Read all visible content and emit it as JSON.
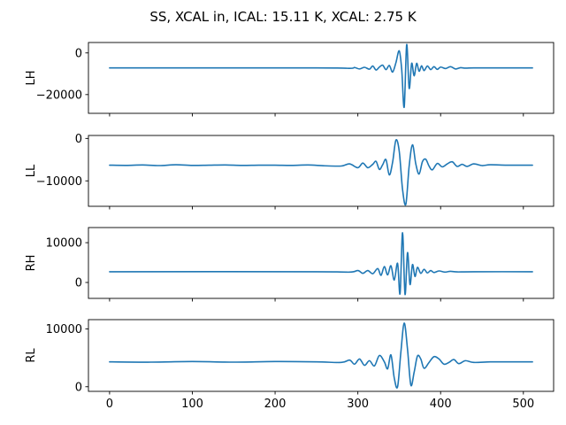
{
  "figure": {
    "title": "SS, XCAL in, ICAL: 15.11 K, XCAL: 2.75 K"
  },
  "chart_data": [
    {
      "type": "line",
      "ylabel": "LH",
      "xlim": [
        -25.55,
        536.55
      ],
      "ylim": [
        -29000,
        5000
      ],
      "xticks": [
        0,
        100,
        200,
        300,
        400,
        500
      ],
      "xtick_labels_shown": false,
      "yticks": [
        0,
        -20000
      ],
      "ytick_labels": [
        "0",
        "−20000"
      ],
      "color": "#1f77b4",
      "baseline": -7200,
      "x": [
        0,
        250,
        290,
        296,
        302,
        308,
        314,
        318,
        322,
        326,
        330,
        334,
        338,
        342,
        346,
        350,
        353,
        356,
        359,
        362,
        365,
        368,
        371,
        374,
        377,
        380,
        384,
        388,
        392,
        396,
        400,
        406,
        412,
        418,
        424,
        430,
        440,
        460,
        511
      ],
      "y": [
        -7200,
        -7200,
        -7400,
        -7000,
        -7700,
        -6900,
        -7800,
        -6300,
        -8200,
        -6800,
        -5900,
        -8000,
        -6000,
        -9200,
        -4700,
        1000,
        -8000,
        -26000,
        4000,
        -17000,
        -5000,
        -11000,
        -5000,
        -8800,
        -6200,
        -8500,
        -6300,
        -8000,
        -6600,
        -7900,
        -6800,
        -7500,
        -6600,
        -7700,
        -7100,
        -7300,
        -7200,
        -7200,
        -7200
      ]
    },
    {
      "type": "line",
      "ylabel": "LL",
      "xlim": [
        -25.55,
        536.55
      ],
      "ylim": [
        -16000,
        700
      ],
      "xticks": [
        0,
        100,
        200,
        300,
        400,
        500
      ],
      "xtick_labels_shown": false,
      "yticks": [
        0,
        -10000
      ],
      "ytick_labels": [
        "0",
        "−10000"
      ],
      "color": "#1f77b4",
      "baseline": -6300,
      "x": [
        0,
        20,
        40,
        60,
        80,
        100,
        120,
        140,
        160,
        180,
        200,
        220,
        240,
        260,
        280,
        290,
        300,
        306,
        312,
        318,
        322,
        326,
        330,
        334,
        338,
        342,
        346,
        350,
        354,
        358,
        362,
        366,
        370,
        374,
        378,
        382,
        386,
        390,
        396,
        402,
        408,
        414,
        420,
        426,
        432,
        440,
        450,
        460,
        480,
        500,
        511
      ],
      "y": [
        -6300,
        -6350,
        -6250,
        -6400,
        -6200,
        -6350,
        -6300,
        -6250,
        -6350,
        -6300,
        -6300,
        -6350,
        -6250,
        -6450,
        -6500,
        -6000,
        -6900,
        -5800,
        -6900,
        -6100,
        -5400,
        -7300,
        -6200,
        -5000,
        -8600,
        -5600,
        -400,
        -3000,
        -12000,
        -15500,
        -6500,
        -1500,
        -6000,
        -8400,
        -5500,
        -4900,
        -6500,
        -7400,
        -5900,
        -6700,
        -6000,
        -5500,
        -6600,
        -6100,
        -6600,
        -6000,
        -6400,
        -6200,
        -6300,
        -6300,
        -6300
      ]
    },
    {
      "type": "line",
      "ylabel": "RH",
      "xlim": [
        -25.55,
        536.55
      ],
      "ylim": [
        -4000,
        13800
      ],
      "xticks": [
        0,
        100,
        200,
        300,
        400,
        500
      ],
      "xtick_labels_shown": false,
      "yticks": [
        0,
        10000
      ],
      "ytick_labels": [
        "0",
        "10000"
      ],
      "color": "#1f77b4",
      "baseline": 2700,
      "x": [
        0,
        250,
        290,
        300,
        306,
        312,
        318,
        324,
        328,
        332,
        336,
        340,
        344,
        348,
        351,
        354,
        357,
        360,
        363,
        366,
        369,
        372,
        376,
        380,
        384,
        388,
        392,
        398,
        405,
        412,
        420,
        440,
        511
      ],
      "y": [
        2700,
        2700,
        2600,
        3000,
        2300,
        3000,
        2200,
        3500,
        1800,
        4000,
        1900,
        4200,
        600,
        4800,
        -2800,
        12500,
        -3000,
        7500,
        -500,
        4500,
        1500,
        3800,
        2300,
        3300,
        2400,
        3000,
        2500,
        2900,
        2600,
        2800,
        2650,
        2700,
        2700
      ]
    },
    {
      "type": "line",
      "ylabel": "RL",
      "xlim": [
        -25.55,
        536.55
      ],
      "ylim": [
        -800,
        11600
      ],
      "xticks": [
        0,
        100,
        200,
        300,
        400,
        500
      ],
      "xtick_labels": [
        "0",
        "100",
        "200",
        "300",
        "400",
        "500"
      ],
      "xtick_labels_shown": true,
      "yticks": [
        0,
        10000
      ],
      "ytick_labels": [
        "0",
        "10000"
      ],
      "color": "#1f77b4",
      "baseline": 4300,
      "x": [
        0,
        50,
        100,
        150,
        200,
        250,
        280,
        290,
        296,
        302,
        308,
        314,
        320,
        326,
        332,
        336,
        340,
        344,
        348,
        352,
        356,
        360,
        364,
        368,
        372,
        376,
        380,
        386,
        392,
        398,
        404,
        410,
        416,
        422,
        430,
        440,
        460,
        480,
        511
      ],
      "y": [
        4300,
        4250,
        4350,
        4250,
        4350,
        4300,
        4200,
        4600,
        3900,
        4800,
        3700,
        4500,
        3600,
        5400,
        4300,
        3100,
        5500,
        1500,
        0,
        6000,
        11000,
        6500,
        300,
        2500,
        5300,
        4800,
        3200,
        4200,
        5200,
        4800,
        3900,
        4200,
        4700,
        4000,
        4500,
        4200,
        4300,
        4300,
        4300
      ]
    }
  ]
}
